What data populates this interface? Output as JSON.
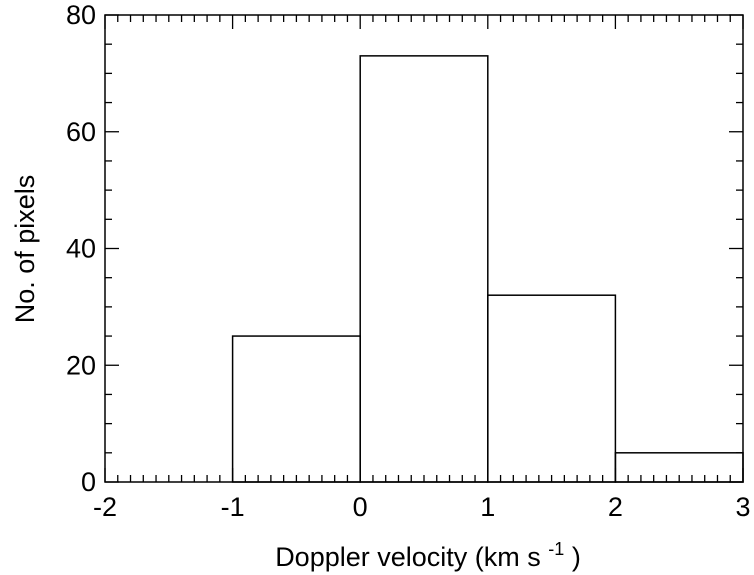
{
  "chart_data": {
    "type": "histogram",
    "xlabel": "Doppler velocity (km s",
    "xlabel_unit_exponent": "-1",
    "xlabel_close": ")",
    "ylabel": "No. of pixels",
    "xlim": [
      -2,
      3
    ],
    "ylim": [
      0,
      80
    ],
    "x_ticks": [
      "-2",
      "-1",
      "0",
      "1",
      "2",
      "3"
    ],
    "y_ticks": [
      "0",
      "20",
      "40",
      "60",
      "80"
    ],
    "bins": [
      {
        "x0": -1,
        "x1": 0,
        "value": 25
      },
      {
        "x0": 0,
        "x1": 1,
        "value": 73
      },
      {
        "x0": 1,
        "x1": 2,
        "value": 32
      },
      {
        "x0": 2,
        "x1": 3,
        "value": 5
      }
    ],
    "grid": false,
    "legend": "none"
  }
}
